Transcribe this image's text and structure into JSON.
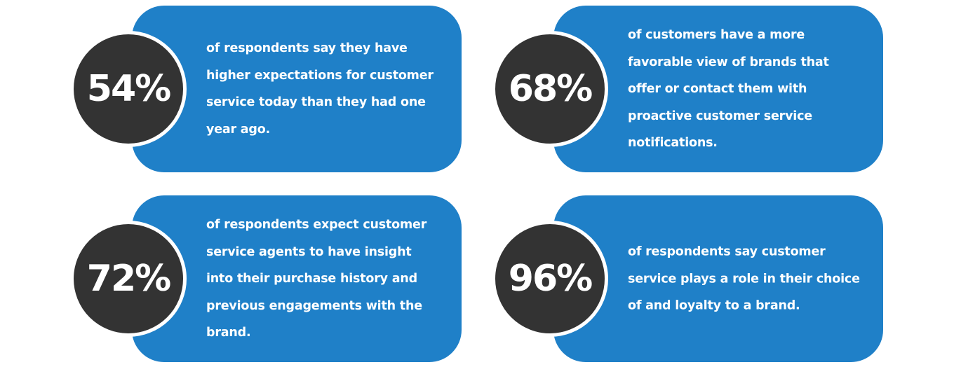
{
  "stats": [
    {
      "value": "54%",
      "description": "of respondents say they have higher expectations for customer service today than they had one year ago."
    },
    {
      "value": "68%",
      "description": "of customers have a more favorable view of brands that offer or contact them with proactive customer service notifications."
    },
    {
      "value": "72%",
      "description": "of respondents expect customer service agents to have insight into their purchase history and previous engagements with the brand."
    },
    {
      "value": "96%",
      "description": "of respondents say customer service plays a role in their choice of and loyalty to a brand."
    }
  ],
  "colors": {
    "card_background": "#1f80c8",
    "circle_background": "#333333",
    "text": "#ffffff",
    "page_background": "#ffffff"
  }
}
